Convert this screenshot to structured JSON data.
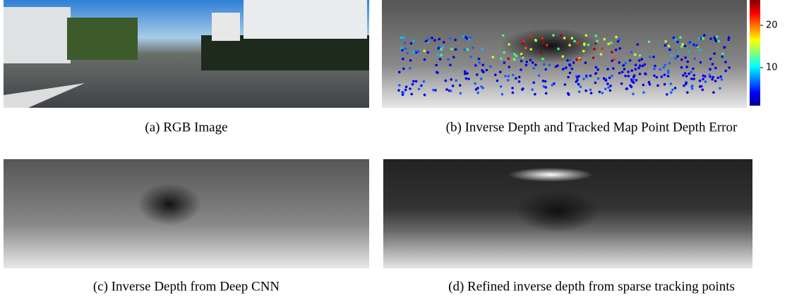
{
  "panels": [
    {
      "caption": "(a) RGB Image"
    },
    {
      "caption": "(b) Inverse Depth and Tracked Map Point Depth Error",
      "colorbar": {
        "range": [
          1,
          26
        ],
        "ticks": [
          10,
          20
        ]
      }
    },
    {
      "caption": "(c) Inverse Depth from Deep CNN"
    },
    {
      "caption": "(d) Refined inverse depth from sparse tracking points"
    }
  ]
}
